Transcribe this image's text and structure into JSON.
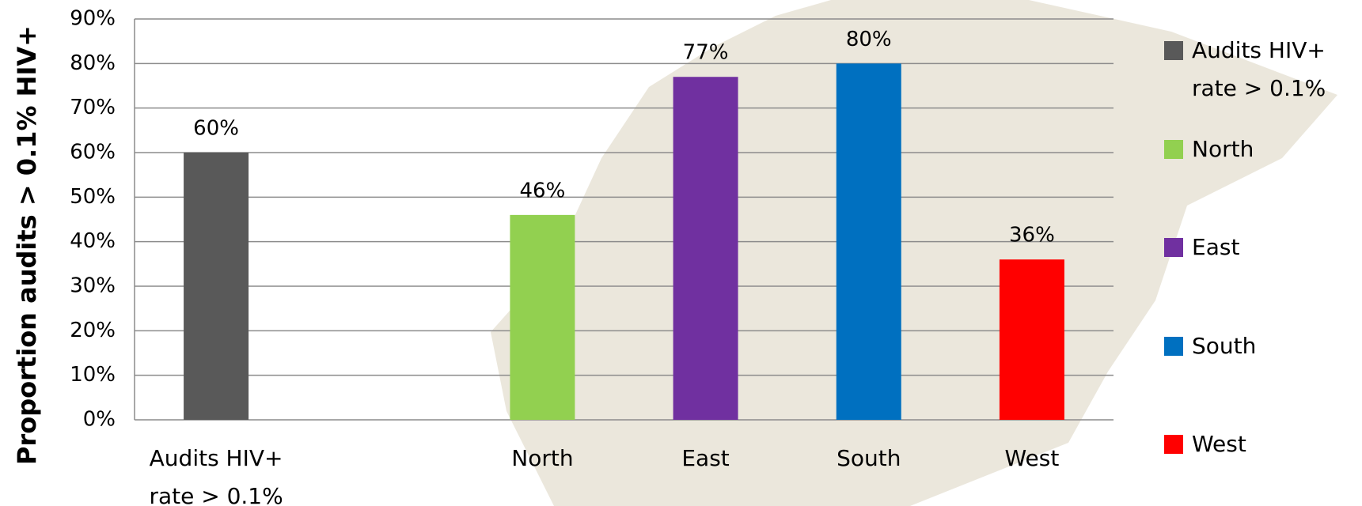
{
  "chart_data": {
    "type": "bar",
    "y_axis_label": "Proportion audits > 0.1% HIV+",
    "categories": [
      "Audits HIV+ rate > 0.1%",
      null,
      "North",
      "East",
      "South",
      "West"
    ],
    "values": [
      60,
      null,
      46,
      77,
      80,
      36
    ],
    "value_labels": [
      "60%",
      null,
      "46%",
      "77%",
      "80%",
      "36%"
    ],
    "colors": [
      "#595959",
      null,
      "#92d050",
      "#7030a0",
      "#0070c0",
      "#ff0000"
    ],
    "ylim": [
      0,
      90
    ],
    "yticks": [
      {
        "value": 0,
        "label": "0%"
      },
      {
        "value": 10,
        "label": "10%"
      },
      {
        "value": 20,
        "label": "20%"
      },
      {
        "value": 30,
        "label": "30%"
      },
      {
        "value": 40,
        "label": "40%"
      },
      {
        "value": 50,
        "label": "50%"
      },
      {
        "value": 60,
        "label": "60%"
      },
      {
        "value": 70,
        "label": "70%"
      },
      {
        "value": 80,
        "label": "80%"
      },
      {
        "value": 90,
        "label": "90%"
      }
    ],
    "grid": true,
    "legend": "right"
  }
}
